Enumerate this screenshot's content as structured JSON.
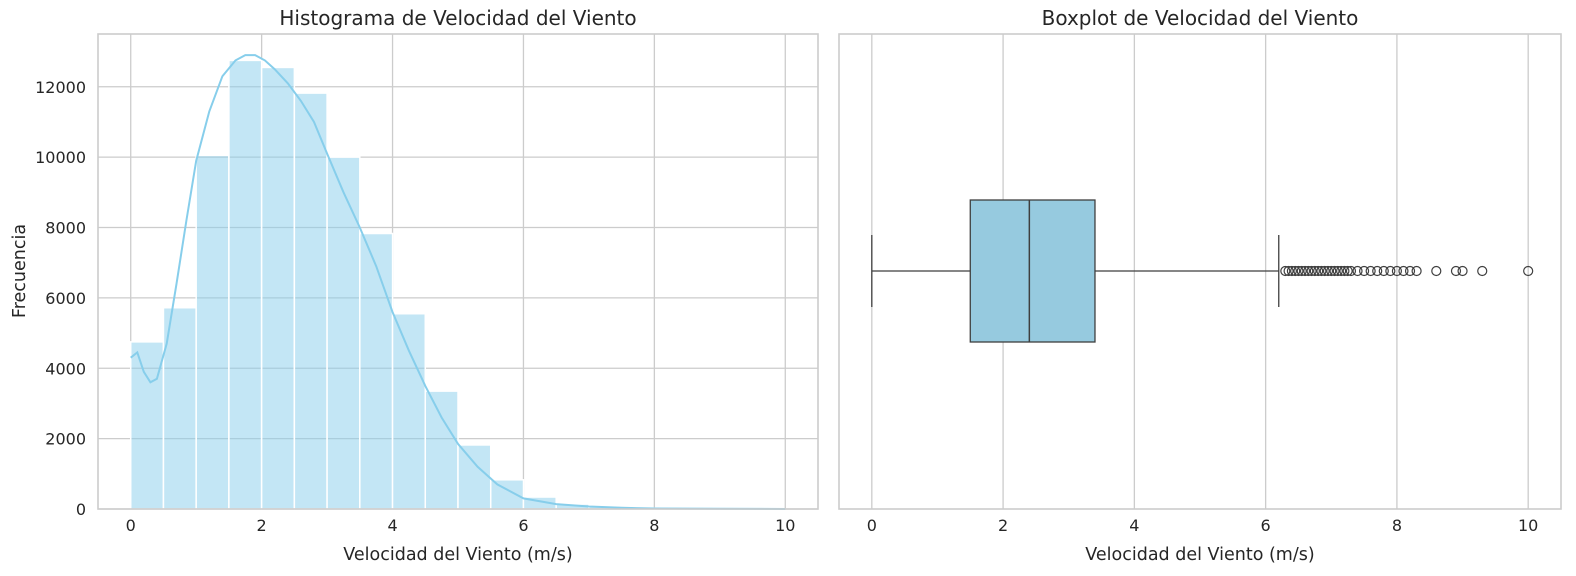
{
  "colors": {
    "bar": "#87ceeb",
    "kde": "#87ceeb",
    "box": "#96cadf",
    "box_edge": "#3f3f3f",
    "grid": "#cccccc",
    "text": "#262626"
  },
  "chart_data": [
    {
      "type": "bar",
      "title": "Histograma de Velocidad del Viento",
      "xlabel": "Velocidad del Viento (m/s)",
      "ylabel": "Frecuencia",
      "xlim": [
        -0.5,
        10.5
      ],
      "ylim": [
        0,
        13500
      ],
      "xticks": [
        0,
        2,
        4,
        6,
        8,
        10
      ],
      "yticks": [
        0,
        2000,
        4000,
        6000,
        8000,
        10000,
        12000
      ],
      "grid": true,
      "bin_width": 0.5,
      "bins": [
        0,
        0.5,
        1,
        1.5,
        2,
        2.5,
        3,
        3.5,
        4,
        4.5,
        5,
        5.5,
        6,
        6.5,
        7,
        7.5,
        8,
        8.5,
        9,
        9.5
      ],
      "values": [
        4750,
        5720,
        10050,
        12750,
        12550,
        11820,
        10000,
        7830,
        5550,
        3350,
        1820,
        830,
        340,
        140,
        60,
        25,
        12,
        5,
        3,
        2
      ],
      "kde": {
        "x": [
          0,
          0.1,
          0.2,
          0.3,
          0.4,
          0.55,
          0.7,
          0.85,
          1.0,
          1.2,
          1.4,
          1.6,
          1.75,
          1.9,
          2.05,
          2.2,
          2.4,
          2.6,
          2.8,
          3.0,
          3.25,
          3.5,
          3.75,
          4.0,
          4.25,
          4.5,
          4.75,
          5.0,
          5.3,
          5.6,
          6.0,
          6.5,
          7.0,
          7.5,
          8.0,
          9.0,
          10.0
        ],
        "y": [
          4300,
          4450,
          3900,
          3600,
          3700,
          4700,
          6400,
          8200,
          9900,
          11300,
          12300,
          12750,
          12900,
          12900,
          12750,
          12500,
          12100,
          11600,
          11000,
          10100,
          9000,
          8000,
          6900,
          5600,
          4500,
          3500,
          2600,
          1850,
          1200,
          700,
          300,
          140,
          70,
          35,
          15,
          5,
          1
        ]
      }
    },
    {
      "type": "box",
      "title": "Boxplot de Velocidad del Viento",
      "xlabel": "Velocidad del Viento (m/s)",
      "xlim": [
        -0.5,
        10.5
      ],
      "xticks": [
        0,
        2,
        4,
        6,
        8,
        10
      ],
      "grid": true,
      "whisker_low": 0,
      "q1": 1.5,
      "median": 2.4,
      "q3": 3.4,
      "whisker_high": 6.2,
      "outliers": [
        6.3,
        6.35,
        6.4,
        6.45,
        6.5,
        6.55,
        6.6,
        6.65,
        6.7,
        6.75,
        6.8,
        6.85,
        6.9,
        6.95,
        7.0,
        7.05,
        7.1,
        7.15,
        7.2,
        7.25,
        7.3,
        7.4,
        7.5,
        7.6,
        7.7,
        7.8,
        7.9,
        8.0,
        8.1,
        8.2,
        8.3,
        8.6,
        8.9,
        9.0,
        9.3,
        10.0
      ]
    }
  ]
}
